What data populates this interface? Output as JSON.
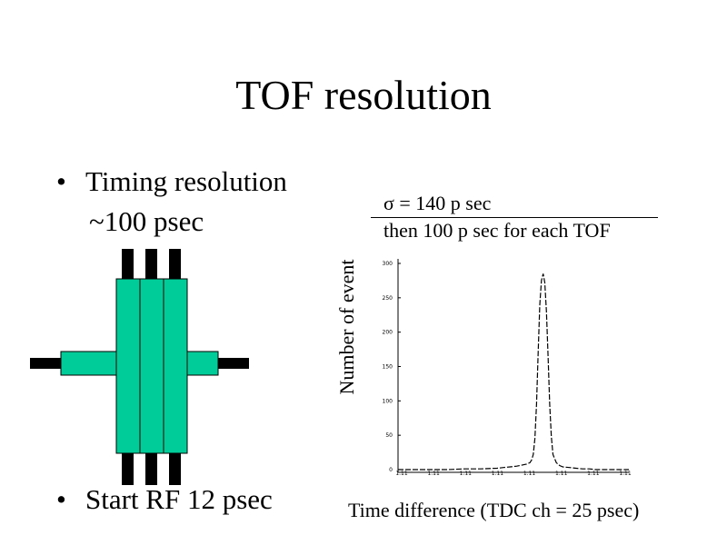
{
  "title": "TOF resolution",
  "bullets": [
    {
      "line1": "Timing resolution",
      "line2": "~100 psec"
    },
    {
      "line1": "Start RF 12 psec"
    }
  ],
  "bullet_symbol": "•",
  "colors": {
    "scintillator": "#00CC99",
    "pmt": "#000000"
  },
  "chart_data": {
    "type": "line",
    "title": "",
    "annotation": {
      "line1": "σ = 140 p sec",
      "line2": "then 100 p sec for each TOF"
    },
    "xlabel": "Time difference (TDC ch = 25 psec)",
    "ylabel": "Number of event",
    "ylim": [
      0,
      300
    ],
    "yticks": [
      0,
      50,
      100,
      150,
      200,
      250,
      300
    ],
    "ytick_labels": [
      "0",
      "50",
      "100",
      "150",
      "200",
      "250",
      "300"
    ],
    "xlim": [
      0,
      7
    ],
    "xtick_labels": [
      "1.11",
      "1.11",
      "1.11",
      "1.11",
      "1.11",
      "1.11",
      "1.11",
      "1.11"
    ],
    "grid": false,
    "x": [
      0,
      0.5,
      1,
      1.5,
      2,
      2.5,
      3,
      3.2,
      3.4,
      3.6,
      3.7,
      3.8,
      3.9,
      4.0,
      4.05,
      4.1,
      4.15,
      4.2,
      4.25,
      4.3,
      4.35,
      4.4,
      4.45,
      4.5,
      4.55,
      4.6,
      4.65,
      4.7,
      4.8,
      4.9,
      5.0,
      5.2,
      5.4,
      5.6,
      5.8,
      6,
      6.5,
      7
    ],
    "y": [
      0,
      0,
      0,
      0,
      1,
      1,
      2,
      3,
      4,
      5,
      6,
      7,
      8,
      10,
      14,
      22,
      45,
      95,
      170,
      240,
      275,
      285,
      272,
      230,
      165,
      95,
      48,
      22,
      10,
      6,
      4,
      3,
      2,
      1,
      1,
      0,
      0,
      0
    ]
  }
}
